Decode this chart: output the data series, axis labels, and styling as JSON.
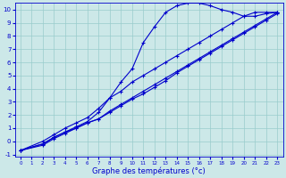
{
  "xlabel": "Graphe des températures (°c)",
  "xlim": [
    -0.5,
    23.5
  ],
  "ylim": [
    -1.2,
    10.5
  ],
  "xticks": [
    0,
    1,
    2,
    3,
    4,
    5,
    6,
    7,
    8,
    9,
    10,
    11,
    12,
    13,
    14,
    15,
    16,
    17,
    18,
    19,
    20,
    21,
    22,
    23
  ],
  "yticks": [
    -1,
    0,
    1,
    2,
    3,
    4,
    5,
    6,
    7,
    8,
    9,
    10
  ],
  "bg_color": "#cce8e8",
  "grid_color": "#99cccc",
  "line_color": "#0000cc",
  "line1_x": [
    0,
    2,
    3,
    4,
    5,
    6,
    7,
    8,
    9,
    10,
    11,
    12,
    13,
    14,
    15,
    16,
    17,
    18,
    19,
    20,
    21,
    22,
    23
  ],
  "line1_y": [
    -0.7,
    -0.2,
    0.3,
    0.7,
    1.0,
    1.4,
    1.7,
    2.2,
    2.7,
    3.2,
    3.6,
    4.1,
    4.6,
    5.2,
    5.7,
    6.2,
    6.7,
    7.2,
    7.7,
    8.2,
    8.7,
    9.2,
    9.7
  ],
  "line2_x": [
    0,
    2,
    3,
    4,
    5,
    6,
    7,
    8,
    9,
    10,
    11,
    12,
    13,
    14,
    15,
    16,
    17,
    18,
    19,
    20,
    21,
    22,
    23
  ],
  "line2_y": [
    -0.7,
    -0.3,
    0.2,
    0.6,
    1.0,
    1.4,
    1.7,
    2.3,
    2.8,
    3.3,
    3.8,
    4.3,
    4.8,
    5.3,
    5.8,
    6.3,
    6.8,
    7.3,
    7.8,
    8.3,
    8.8,
    9.3,
    9.8
  ],
  "line3_x": [
    0,
    2,
    3,
    4,
    5,
    6,
    7,
    8,
    9,
    10,
    11,
    12,
    13,
    14,
    15,
    16,
    17,
    18,
    19,
    20,
    21,
    22,
    23
  ],
  "line3_y": [
    -0.7,
    0.0,
    0.5,
    1.0,
    1.4,
    1.8,
    2.5,
    3.3,
    3.8,
    4.5,
    5.0,
    5.5,
    6.0,
    6.5,
    7.0,
    7.5,
    8.0,
    8.5,
    9.0,
    9.5,
    9.8,
    9.8,
    9.8
  ],
  "line4_x": [
    0,
    2,
    3,
    4,
    5,
    6,
    7,
    8,
    9,
    10,
    11,
    12,
    13,
    14,
    15,
    16,
    17,
    18,
    19,
    20,
    21,
    22,
    23
  ],
  "line4_y": [
    -0.7,
    -0.2,
    0.3,
    0.7,
    1.1,
    1.5,
    2.2,
    3.3,
    4.5,
    5.5,
    7.5,
    8.7,
    9.8,
    10.3,
    10.5,
    10.5,
    10.3,
    10.0,
    9.8,
    9.5,
    9.5,
    9.7,
    9.8
  ],
  "marker": "+",
  "markersize": 3,
  "linewidth": 0.8
}
